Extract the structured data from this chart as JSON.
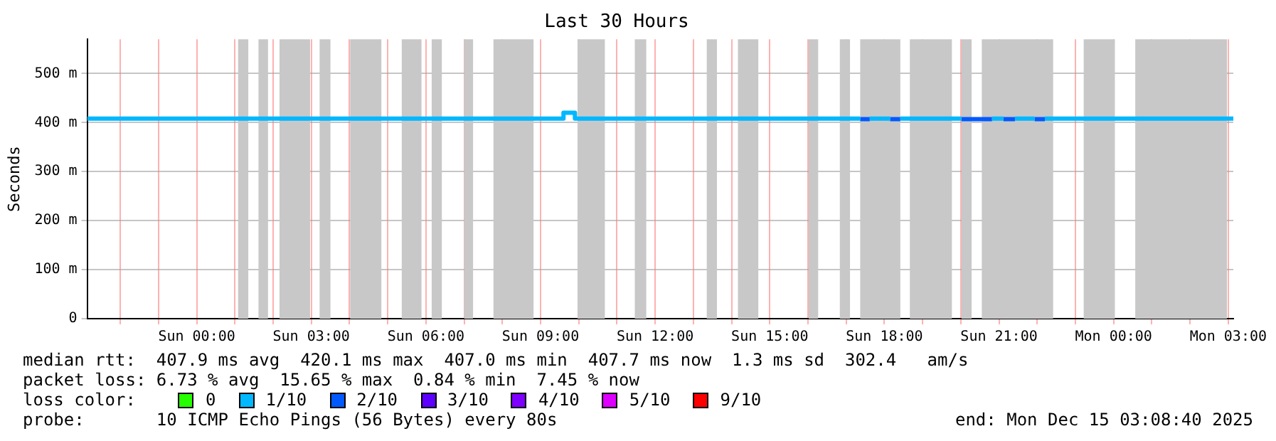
{
  "chart_data": {
    "type": "line",
    "title": "Last 30 Hours",
    "ylabel": "Seconds",
    "legend_title": "loss color:",
    "legend": "bottom",
    "grid": true,
    "marker": "none",
    "line_style": "solid",
    "xlim": [
      "2025-12-13T21:08",
      "2025-12-15T03:08"
    ],
    "xticks": [
      {
        "value": "2025-12-13T22:00",
        "label": null
      },
      {
        "value": "2025-12-13T23:00",
        "label": null
      },
      {
        "value": "2025-12-14T00:00",
        "label": "Sun 00:00"
      },
      {
        "value": "2025-12-14T01:00",
        "label": null
      },
      {
        "value": "2025-12-14T02:00",
        "label": null
      },
      {
        "value": "2025-12-14T03:00",
        "label": "Sun 03:00"
      },
      {
        "value": "2025-12-14T04:00",
        "label": null
      },
      {
        "value": "2025-12-14T05:00",
        "label": null
      },
      {
        "value": "2025-12-14T06:00",
        "label": "Sun 06:00"
      },
      {
        "value": "2025-12-14T07:00",
        "label": null
      },
      {
        "value": "2025-12-14T08:00",
        "label": null
      },
      {
        "value": "2025-12-14T09:00",
        "label": "Sun 09:00"
      },
      {
        "value": "2025-12-14T10:00",
        "label": null
      },
      {
        "value": "2025-12-14T11:00",
        "label": null
      },
      {
        "value": "2025-12-14T12:00",
        "label": "Sun 12:00"
      },
      {
        "value": "2025-12-14T13:00",
        "label": null
      },
      {
        "value": "2025-12-14T14:00",
        "label": null
      },
      {
        "value": "2025-12-14T15:00",
        "label": "Sun 15:00"
      },
      {
        "value": "2025-12-14T16:00",
        "label": null
      },
      {
        "value": "2025-12-14T17:00",
        "label": null
      },
      {
        "value": "2025-12-14T18:00",
        "label": "Sun 18:00"
      },
      {
        "value": "2025-12-14T19:00",
        "label": null
      },
      {
        "value": "2025-12-14T20:00",
        "label": null
      },
      {
        "value": "2025-12-14T21:00",
        "label": "Sun 21:00"
      },
      {
        "value": "2025-12-14T22:00",
        "label": null
      },
      {
        "value": "2025-12-14T23:00",
        "label": null
      },
      {
        "value": "2025-12-15T00:00",
        "label": "Mon 00:00"
      },
      {
        "value": "2025-12-15T01:00",
        "label": null
      },
      {
        "value": "2025-12-15T02:00",
        "label": null
      },
      {
        "value": "2025-12-15T03:00",
        "label": "Mon 03:00"
      }
    ],
    "ylim": [
      0,
      570
    ],
    "yticks": [
      0,
      {
        "value": 100,
        "label": "100 m"
      },
      {
        "value": 200,
        "label": "200 m"
      },
      {
        "value": 300,
        "label": "300 m"
      },
      {
        "value": 400,
        "label": "400 m"
      },
      {
        "value": 500,
        "label": "500 m"
      }
    ],
    "series": [
      {
        "name": "0",
        "color": "#26ff00"
      },
      {
        "name": "1/10",
        "color": "#00b8ff",
        "x": [
          "2025-12-13T21:08",
          "2025-12-14T09:36",
          "2025-12-14T09:36",
          "2025-12-14T09:54",
          "2025-12-14T09:54",
          "2025-12-14T17:22",
          "2025-12-14T17:30",
          "2025-12-14T17:37",
          "2025-12-14T18:09",
          "2025-12-14T18:15",
          "2025-12-14T18:25",
          "2025-12-14T20:01",
          "2025-12-14T20:20",
          "2025-12-14T20:49",
          "2025-12-14T21:07",
          "2025-12-14T21:15",
          "2025-12-14T21:25",
          "2025-12-14T21:56",
          "2025-12-14T22:05",
          "2025-12-14T22:12",
          "2025-12-15T03:08"
        ],
        "values": [
          408,
          408,
          420,
          420,
          408,
          408,
          null,
          408,
          408,
          null,
          408,
          408,
          null,
          408,
          408,
          null,
          408,
          408,
          null,
          408,
          408
        ]
      },
      {
        "name": "2/10",
        "color": "#0059ff",
        "x": [
          "2025-12-14T17:22",
          "2025-12-14T17:37",
          "2025-12-14T17:48",
          "2025-12-14T18:09",
          "2025-12-14T18:25",
          "2025-12-14T18:36",
          "2025-12-14T20:01",
          "2025-12-14T20:49",
          "2025-12-14T20:54",
          "2025-12-14T21:07",
          "2025-12-14T21:25",
          "2025-12-14T21:36",
          "2025-12-14T21:56",
          "2025-12-14T22:12"
        ],
        "values": [
          407,
          407,
          null,
          407,
          407,
          null,
          407,
          407,
          null,
          407,
          407,
          null,
          407,
          407
        ]
      },
      {
        "name": "3/10",
        "color": "#5e00ff"
      },
      {
        "name": "4/10",
        "color": "#7e00ff"
      },
      {
        "name": "5/10",
        "color": "#dd00ff"
      },
      {
        "name": "9/10",
        "color": "#ff0000"
      }
    ],
    "bands": [
      {
        "axis": "x",
        "from": "2025-12-14T01:05",
        "to": "2025-12-14T01:21",
        "color": "#c8c8c8"
      },
      {
        "axis": "x",
        "from": "2025-12-14T01:37",
        "to": "2025-12-14T01:52",
        "color": "#c8c8c8"
      },
      {
        "axis": "x",
        "from": "2025-12-14T02:10",
        "to": "2025-12-14T02:58",
        "color": "#c8c8c8"
      },
      {
        "axis": "x",
        "from": "2025-12-14T03:13",
        "to": "2025-12-14T03:30",
        "color": "#c8c8c8"
      },
      {
        "axis": "x",
        "from": "2025-12-14T04:01",
        "to": "2025-12-14T04:50",
        "color": "#c8c8c8"
      },
      {
        "axis": "x",
        "from": "2025-12-14T05:22",
        "to": "2025-12-14T05:53",
        "color": "#c8c8c8"
      },
      {
        "axis": "x",
        "from": "2025-12-14T06:09",
        "to": "2025-12-14T06:25",
        "color": "#c8c8c8"
      },
      {
        "axis": "x",
        "from": "2025-12-14T07:00",
        "to": "2025-12-14T07:14",
        "color": "#c8c8c8"
      },
      {
        "axis": "x",
        "from": "2025-12-14T07:46",
        "to": "2025-12-14T08:49",
        "color": "#c8c8c8"
      },
      {
        "axis": "x",
        "from": "2025-12-14T09:58",
        "to": "2025-12-14T10:41",
        "color": "#c8c8c8"
      },
      {
        "axis": "x",
        "from": "2025-12-14T11:28",
        "to": "2025-12-14T11:46",
        "color": "#c8c8c8"
      },
      {
        "axis": "x",
        "from": "2025-12-14T13:21",
        "to": "2025-12-14T13:37",
        "color": "#c8c8c8"
      },
      {
        "axis": "x",
        "from": "2025-12-14T14:10",
        "to": "2025-12-14T14:42",
        "color": "#c8c8c8"
      },
      {
        "axis": "x",
        "from": "2025-12-14T16:01",
        "to": "2025-12-14T16:16",
        "color": "#c8c8c8"
      },
      {
        "axis": "x",
        "from": "2025-12-14T16:50",
        "to": "2025-12-14T17:06",
        "color": "#c8c8c8"
      },
      {
        "axis": "x",
        "from": "2025-12-14T17:22",
        "to": "2025-12-14T18:25",
        "color": "#c8c8c8"
      },
      {
        "axis": "x",
        "from": "2025-12-14T18:40",
        "to": "2025-12-14T19:46",
        "color": "#c8c8c8"
      },
      {
        "axis": "x",
        "from": "2025-12-14T20:01",
        "to": "2025-12-14T20:17",
        "color": "#c8c8c8"
      },
      {
        "axis": "x",
        "from": "2025-12-14T20:33",
        "to": "2025-12-14T22:25",
        "color": "#c8c8c8"
      },
      {
        "axis": "x",
        "from": "2025-12-14T23:13",
        "to": "2025-12-15T00:02",
        "color": "#c8c8c8"
      },
      {
        "axis": "x",
        "from": "2025-12-15T00:34",
        "to": "2025-12-15T02:58",
        "color": "#c8c8c8"
      }
    ],
    "annotations": [
      "median rtt:  407.9 ms avg  420.1 ms max  407.0 ms min  407.7 ms now  1.3 ms sd  302.4   am/s",
      "packet loss: 6.73 % avg  15.65 % max  0.84 % min  7.45 % now",
      "probe:       10 ICMP Echo Pings (56 Bytes) every 80s",
      "end: Mon Dec 15 03:08:40 2025"
    ]
  }
}
